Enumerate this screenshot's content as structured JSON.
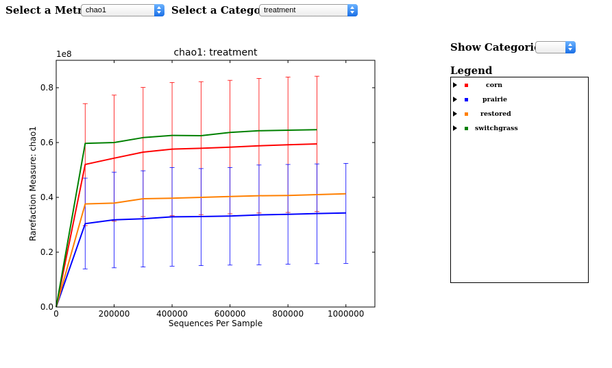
{
  "controls": {
    "metric_label": "Select a Metric:",
    "metric_value": "chao1",
    "category_label": "Select a Category:",
    "category_value": "treatment",
    "show_categories_label": "Show Categories:",
    "show_categories_value": ""
  },
  "legend": {
    "title": "Legend",
    "items": [
      {
        "label": "corn",
        "color": "#ff0000"
      },
      {
        "label": "prairie",
        "color": "#0000ff"
      },
      {
        "label": "restored",
        "color": "#ff7f00"
      },
      {
        "label": "switchgrass",
        "color": "#008000"
      }
    ]
  },
  "chart_data": {
    "type": "line",
    "title": "chao1: treatment",
    "xlabel": "Sequences Per Sample",
    "ylabel": "Rarefaction Measure: chao1",
    "y_offset_text": "1e8",
    "xlim": [
      0,
      1100000
    ],
    "ylim": [
      0,
      0.9
    ],
    "xticks": [
      0,
      200000,
      400000,
      600000,
      800000,
      1000000
    ],
    "xtick_labels": [
      "0",
      "200000",
      "400000",
      "600000",
      "800000",
      "1000000"
    ],
    "yticks": [
      0,
      0.2,
      0.4,
      0.6,
      0.8
    ],
    "ytick_labels": [
      "0.0",
      "0.2",
      "0.4",
      "0.6",
      "0.8"
    ],
    "series": [
      {
        "name": "corn",
        "color": "#ff0000",
        "x": [
          0,
          100000,
          200000,
          300000,
          400000,
          500000,
          600000,
          700000,
          800000,
          900000
        ],
        "y": [
          0,
          0.52,
          0.543,
          0.565,
          0.576,
          0.579,
          0.583,
          0.588,
          0.592,
          0.595
        ],
        "err_low": [
          0,
          0.297,
          0.313,
          0.33,
          0.333,
          0.337,
          0.34,
          0.343,
          0.345,
          0.348
        ],
        "err_high": [
          0,
          0.742,
          0.773,
          0.801,
          0.819,
          0.822,
          0.827,
          0.834,
          0.839,
          0.842
        ]
      },
      {
        "name": "prairie",
        "color": "#0000ff",
        "x": [
          0,
          100000,
          200000,
          300000,
          400000,
          500000,
          600000,
          700000,
          800000,
          900000,
          1000000
        ],
        "y": [
          0,
          0.304,
          0.318,
          0.322,
          0.329,
          0.33,
          0.332,
          0.336,
          0.338,
          0.341,
          0.343
        ],
        "err_low": [
          0,
          0.139,
          0.143,
          0.146,
          0.149,
          0.151,
          0.153,
          0.154,
          0.156,
          0.158,
          0.159
        ],
        "err_high": [
          0,
          0.47,
          0.492,
          0.497,
          0.509,
          0.505,
          0.509,
          0.518,
          0.52,
          0.522,
          0.524
        ]
      },
      {
        "name": "restored",
        "color": "#ff7f00",
        "x": [
          0,
          100000,
          200000,
          300000,
          400000,
          500000,
          600000,
          700000,
          800000,
          900000,
          1000000
        ],
        "y": [
          0,
          0.376,
          0.379,
          0.395,
          0.397,
          0.4,
          0.403,
          0.406,
          0.407,
          0.41,
          0.413
        ],
        "err_low": [],
        "err_high": []
      },
      {
        "name": "switchgrass",
        "color": "#008000",
        "x": [
          0,
          100000,
          200000,
          300000,
          400000,
          500000,
          600000,
          700000,
          800000,
          900000
        ],
        "y": [
          0,
          0.597,
          0.6,
          0.618,
          0.626,
          0.625,
          0.637,
          0.643,
          0.645,
          0.647
        ],
        "err_low": [],
        "err_high": []
      }
    ],
    "grid": false
  }
}
